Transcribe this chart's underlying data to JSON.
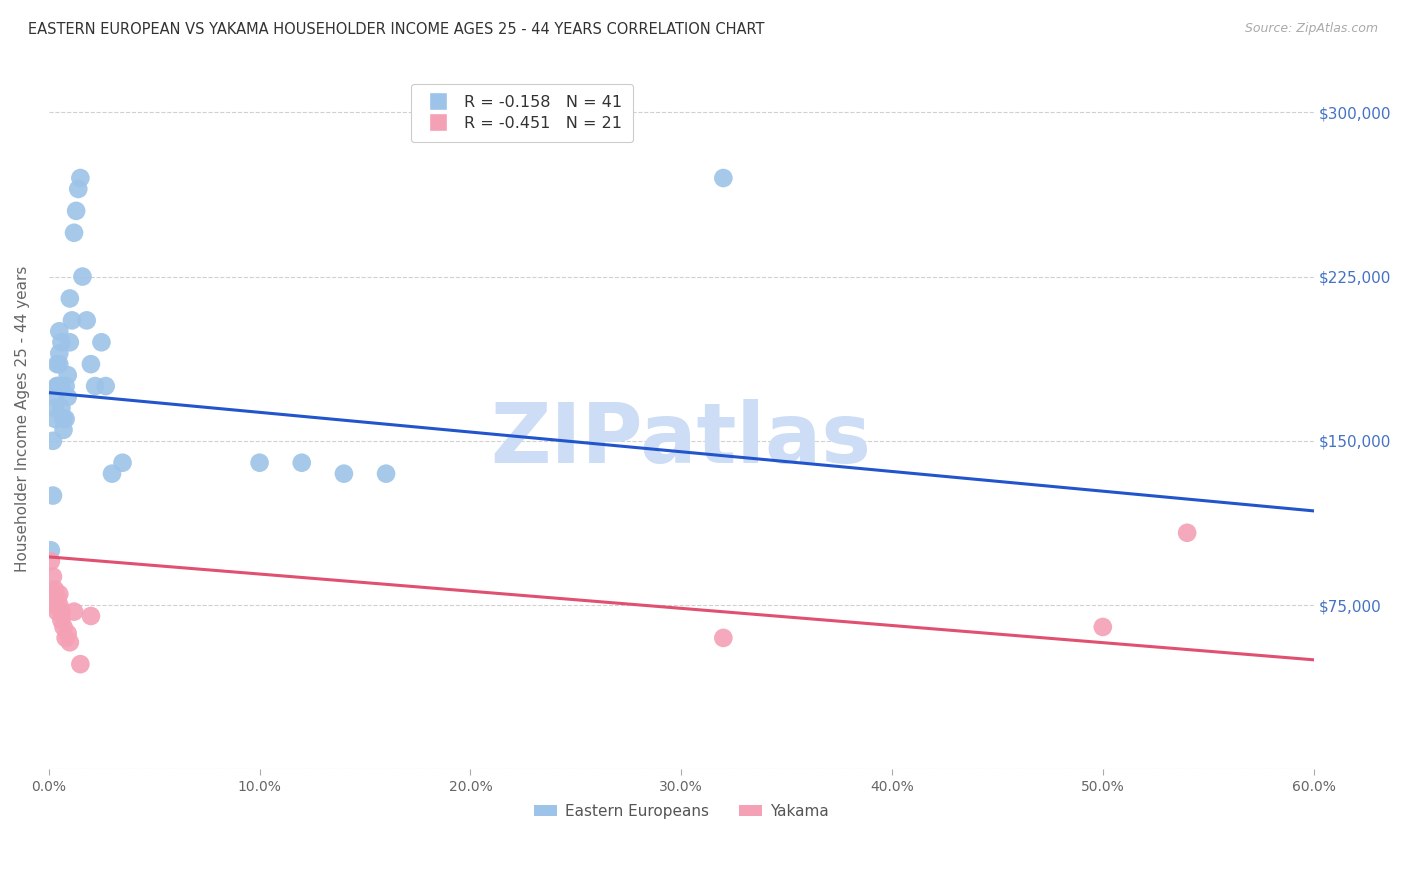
{
  "title": "EASTERN EUROPEAN VS YAKAMA HOUSEHOLDER INCOME AGES 25 - 44 YEARS CORRELATION CHART",
  "source": "Source: ZipAtlas.com",
  "ylabel": "Householder Income Ages 25 - 44 years",
  "xlabel_ticks": [
    "0.0%",
    "10.0%",
    "20.0%",
    "30.0%",
    "40.0%",
    "50.0%",
    "60.0%"
  ],
  "xlabel_vals": [
    0.0,
    0.1,
    0.2,
    0.3,
    0.4,
    0.5,
    0.6
  ],
  "ytick_vals": [
    0,
    75000,
    150000,
    225000,
    300000
  ],
  "xlim": [
    0.0,
    0.6
  ],
  "ylim": [
    0,
    320000
  ],
  "background_color": "#ffffff",
  "grid_color": "#d0d0d0",
  "right_tick_color": "#4472c4",
  "watermark_text": "ZIPatlas",
  "watermark_color": "#ccddf5",
  "series": [
    {
      "name": "Eastern Europeans",
      "R": -0.158,
      "N": 41,
      "color": "#9dc3e8",
      "line_color": "#2255cc",
      "x": [
        0.001,
        0.002,
        0.002,
        0.003,
        0.003,
        0.003,
        0.004,
        0.004,
        0.004,
        0.005,
        0.005,
        0.005,
        0.006,
        0.006,
        0.006,
        0.007,
        0.007,
        0.008,
        0.008,
        0.009,
        0.009,
        0.01,
        0.01,
        0.011,
        0.012,
        0.013,
        0.014,
        0.015,
        0.016,
        0.018,
        0.02,
        0.022,
        0.025,
        0.027,
        0.03,
        0.035,
        0.1,
        0.12,
        0.14,
        0.16,
        0.32
      ],
      "y": [
        100000,
        150000,
        125000,
        160000,
        165000,
        170000,
        175000,
        185000,
        175000,
        190000,
        200000,
        185000,
        195000,
        165000,
        175000,
        160000,
        155000,
        175000,
        160000,
        180000,
        170000,
        195000,
        215000,
        205000,
        245000,
        255000,
        265000,
        270000,
        225000,
        205000,
        185000,
        175000,
        195000,
        175000,
        135000,
        140000,
        140000,
        140000,
        135000,
        135000,
        270000
      ],
      "trendline_x": [
        0.0,
        0.6
      ],
      "trendline_y": [
        172000,
        118000
      ]
    },
    {
      "name": "Yakama",
      "R": -0.451,
      "N": 21,
      "color": "#f4a0b5",
      "line_color": "#e05070",
      "x": [
        0.001,
        0.002,
        0.002,
        0.003,
        0.003,
        0.004,
        0.004,
        0.005,
        0.005,
        0.006,
        0.006,
        0.007,
        0.008,
        0.009,
        0.01,
        0.012,
        0.015,
        0.02,
        0.32,
        0.5,
        0.54
      ],
      "y": [
        95000,
        88000,
        80000,
        82000,
        75000,
        78000,
        72000,
        80000,
        75000,
        72000,
        68000,
        65000,
        60000,
        62000,
        58000,
        72000,
        48000,
        70000,
        60000,
        65000,
        108000
      ],
      "trendline_x": [
        0.0,
        0.6
      ],
      "trendline_y": [
        97000,
        50000
      ]
    }
  ]
}
